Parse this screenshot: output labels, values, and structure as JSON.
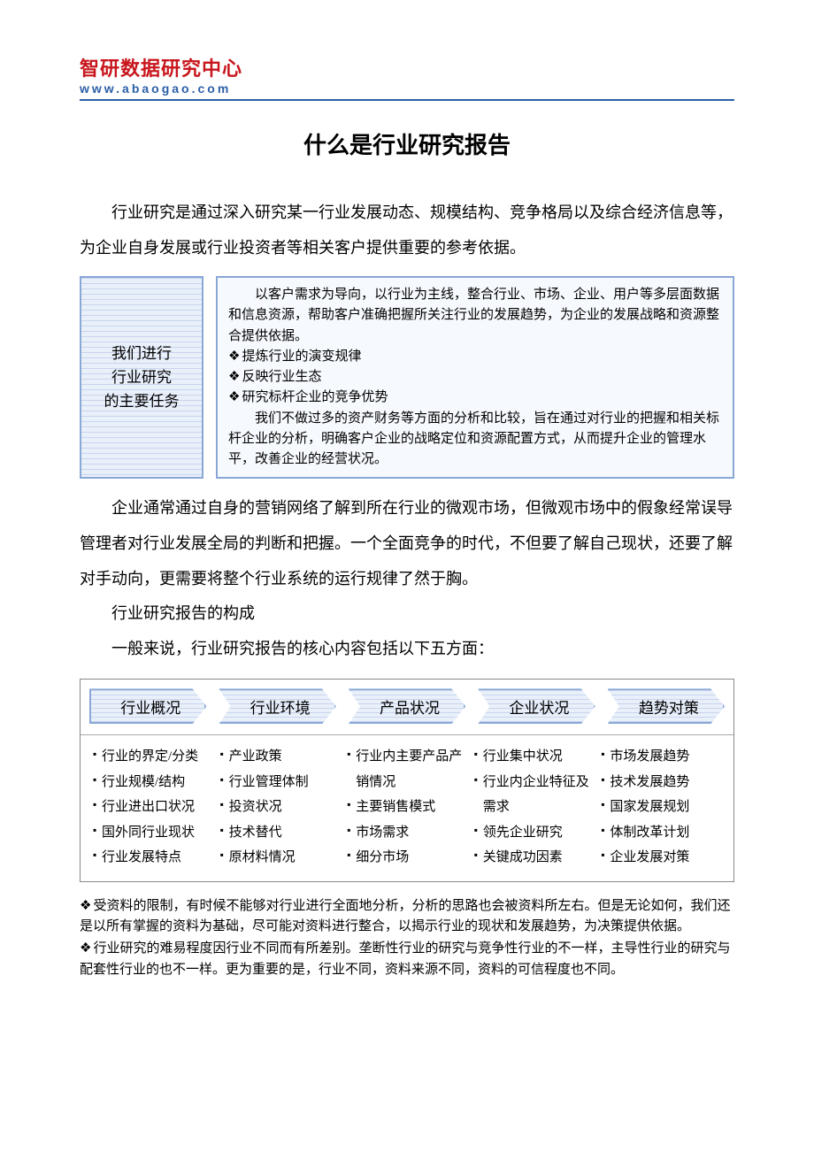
{
  "header": {
    "logo_line1": "智研数据研究中心",
    "logo_line1_color": "#c8161d",
    "logo_line2": "www.abaogao.com",
    "logo_line2_color": "#2b5fa8"
  },
  "title": "什么是行业研究报告",
  "intro": "行业研究是通过深入研究某一行业发展动态、规模结构、竞争格局以及综合经济信息等，为企业自身发展或行业投资者等相关客户提供重要的参考依据。",
  "tasks_box": {
    "left_lines": [
      "我们进行",
      "行业研究",
      "的主要任务"
    ],
    "right_pre": "以客户需求为导向，以行业为主线，整合行业、市场、企业、用户等多层面数据和信息资源，帮助客户准确把握所关注行业的发展趋势，为企业的发展战略和资源整合提供依据。",
    "right_bullets": [
      "提炼行业的演变规律",
      "反映行业生态",
      "研究标杆企业的竞争优势"
    ],
    "right_post": "我们不做过多的资产财务等方面的分析和比较，旨在通过对行业的把握和相关标杆企业的分析，明确客户企业的战略定位和资源配置方式，从而提升企业的管理水平，改善企业的经营状况。"
  },
  "para2": "企业通常通过自身的营销网络了解到所在行业的微观市场，但微观市场中的假象经常误导管理者对行业发展全局的判断和把握。一个全面竞争的时代，不但要了解自己现状，还要了解对手动向，更需要将整个行业系统的运行规律了然于胸。",
  "sub1": "行业研究报告的构成",
  "sub2": "一般来说，行业研究报告的核心内容包括以下五方面：",
  "five": {
    "chevrons": [
      "行业概况",
      "行业环境",
      "产品状况",
      "企业状况",
      "趋势对策"
    ],
    "columns": [
      [
        "行业的界定/分类",
        "行业规模/结构",
        "行业进出口状况",
        "国外同行业现状",
        "行业发展特点"
      ],
      [
        "产业政策",
        "行业管理体制",
        "投资状况",
        "技术替代",
        "原材料情况"
      ],
      [
        "行业内主要产品产销情况",
        "主要销售模式",
        "市场需求",
        "细分市场"
      ],
      [
        "行业集中状况",
        "行业内企业特征及需求",
        "领先企业研究",
        "关键成功因素"
      ],
      [
        "市场发展趋势",
        "技术发展趋势",
        "国家发展规划",
        "体制改革计划",
        "企业发展对策"
      ]
    ]
  },
  "footnotes": [
    "受资料的限制，有时候不能够对行业进行全面地分析，分析的思路也会被资料所左右。但是无论如何，我们还是以所有掌握的资料为基础，尽可能对资料进行整合，以揭示行业的现状和发展趋势，为决策提供依据。",
    "行业研究的难易程度因行业不同而有所差别。垄断性行业的研究与竞争性行业的不一样，主导性行业的研究与配套性行业的也不一样。更为重要的是，行业不同，资料来源不同，资料的可信程度也不同。"
  ],
  "colors": {
    "box_border": "#89a8d6",
    "box_fill": "#eaf0fa",
    "stripe": "#c6d5ec",
    "rule": "#2b5fa8"
  }
}
